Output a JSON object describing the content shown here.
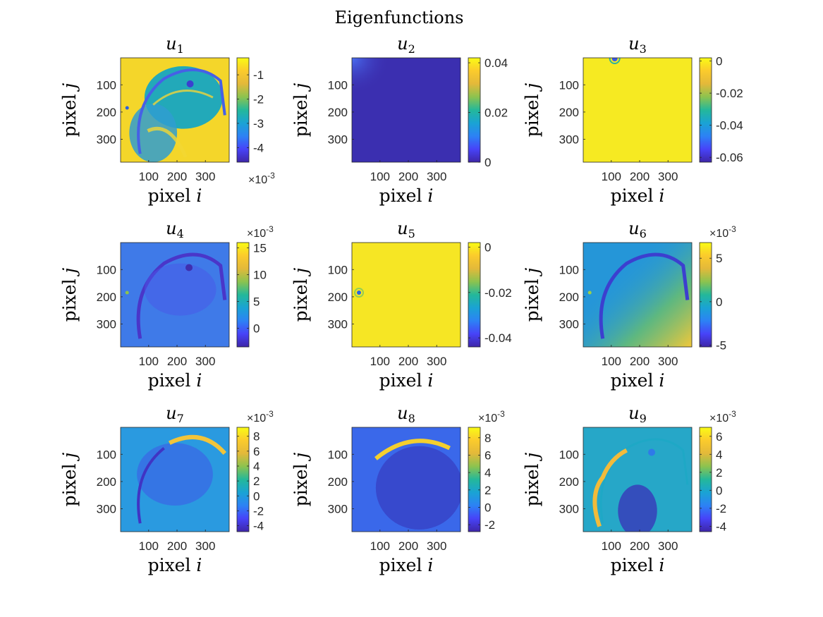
{
  "figure": {
    "title": "Eigenfunctions",
    "colormap": [
      "#3e26a8",
      "#4743f8",
      "#2c82f5",
      "#1aa3d4",
      "#24b89a",
      "#8cc34f",
      "#e3b93a",
      "#fbcb2c",
      "#f9fb15"
    ]
  },
  "chart_data": [
    {
      "type": "heatmap",
      "title_base": "u",
      "title_sub": "1",
      "xlabel_prefix": "pixel ",
      "xlabel_var": "i",
      "ylabel_prefix": "pixel ",
      "ylabel_var": "j",
      "xticks": [
        "100",
        "200",
        "300"
      ],
      "yticks": [
        "100",
        "200",
        "300"
      ],
      "xlim": [
        1,
        384
      ],
      "ylim": [
        1,
        384
      ],
      "colorbar": {
        "ticks": [
          "-1",
          "-2",
          "-3",
          "-4"
        ],
        "tick_values": [
          -1,
          -2,
          -3,
          -4
        ],
        "range": [
          -4.6,
          -0.3
        ],
        "exponent_base": "×10",
        "exponent_power": "-3",
        "exponent_position": "bottom"
      },
      "image": "brain-anatomy",
      "base_color": "#f4d62a"
    },
    {
      "type": "heatmap",
      "title_base": "u",
      "title_sub": "2",
      "xlabel_prefix": "pixel ",
      "xlabel_var": "i",
      "ylabel_prefix": "pixel ",
      "ylabel_var": "j",
      "xticks": [
        "100",
        "200",
        "300"
      ],
      "yticks": [
        "100",
        "200",
        "300"
      ],
      "xlim": [
        1,
        384
      ],
      "ylim": [
        1,
        384
      ],
      "colorbar": {
        "ticks": [
          "0.04",
          "0.02",
          "0"
        ],
        "tick_values": [
          0.04,
          0.02,
          0
        ],
        "range": [
          0,
          0.042
        ],
        "exponent_base": "",
        "exponent_power": "",
        "exponent_position": "none"
      },
      "image": "corner-peak",
      "base_color": "#3b2fb0"
    },
    {
      "type": "heatmap",
      "title_base": "u",
      "title_sub": "3",
      "xlabel_prefix": "pixel ",
      "xlabel_var": "i",
      "ylabel_prefix": "pixel ",
      "ylabel_var": "j",
      "xticks": [
        "100",
        "200",
        "300"
      ],
      "yticks": [
        "100",
        "200",
        "300"
      ],
      "xlim": [
        1,
        384
      ],
      "ylim": [
        1,
        384
      ],
      "colorbar": {
        "ticks": [
          "0",
          "-0.02",
          "-0.04",
          "-0.06"
        ],
        "tick_values": [
          0,
          -0.02,
          -0.04,
          -0.06
        ],
        "range": [
          -0.063,
          0.002
        ],
        "exponent_base": "",
        "exponent_power": "",
        "exponent_position": "none"
      },
      "image": "top-spot",
      "base_color": "#f6ea22"
    },
    {
      "type": "heatmap",
      "title_base": "u",
      "title_sub": "4",
      "xlabel_prefix": "pixel ",
      "xlabel_var": "i",
      "ylabel_prefix": "pixel ",
      "ylabel_var": "j",
      "xticks": [
        "100",
        "200",
        "300"
      ],
      "yticks": [
        "100",
        "200",
        "300"
      ],
      "xlim": [
        1,
        384
      ],
      "ylim": [
        1,
        384
      ],
      "colorbar": {
        "ticks": [
          "15",
          "10",
          "5",
          "0"
        ],
        "tick_values": [
          15,
          10,
          5,
          0
        ],
        "range": [
          -3.5,
          16
        ],
        "exponent_base": "×10",
        "exponent_power": "-3",
        "exponent_position": "top"
      },
      "image": "brain-smooth",
      "base_color": "#3f7ae8"
    },
    {
      "type": "heatmap",
      "title_base": "u",
      "title_sub": "5",
      "xlabel_prefix": "pixel ",
      "xlabel_var": "i",
      "ylabel_prefix": "pixel ",
      "ylabel_var": "j",
      "xticks": [
        "100",
        "200",
        "300"
      ],
      "yticks": [
        "100",
        "200",
        "300"
      ],
      "xlim": [
        1,
        384
      ],
      "ylim": [
        1,
        384
      ],
      "colorbar": {
        "ticks": [
          "0",
          "-0.02",
          "-0.04"
        ],
        "tick_values": [
          0,
          -0.02,
          -0.04
        ],
        "range": [
          -0.044,
          0.002
        ],
        "exponent_base": "",
        "exponent_power": "",
        "exponent_position": "none"
      },
      "image": "left-spot",
      "base_color": "#f6e624"
    },
    {
      "type": "heatmap",
      "title_base": "u",
      "title_sub": "6",
      "xlabel_prefix": "pixel ",
      "xlabel_var": "i",
      "ylabel_prefix": "pixel ",
      "ylabel_var": "j",
      "xticks": [
        "100",
        "200",
        "300"
      ],
      "yticks": [
        "100",
        "200",
        "300"
      ],
      "xlim": [
        1,
        384
      ],
      "ylim": [
        1,
        384
      ],
      "colorbar": {
        "ticks": [
          "5",
          "0",
          "-5"
        ],
        "tick_values": [
          5,
          0,
          -5
        ],
        "range": [
          -5.2,
          6.8
        ],
        "exponent_base": "×10",
        "exponent_power": "-3",
        "exponent_position": "top"
      },
      "image": "brain-gradient",
      "base_color": "#2596d8"
    },
    {
      "type": "heatmap",
      "title_base": "u",
      "title_sub": "7",
      "xlabel_prefix": "pixel ",
      "xlabel_var": "i",
      "ylabel_prefix": "pixel ",
      "ylabel_var": "j",
      "xticks": [
        "100",
        "200",
        "300"
      ],
      "yticks": [
        "100",
        "200",
        "300"
      ],
      "xlim": [
        1,
        384
      ],
      "ylim": [
        1,
        384
      ],
      "colorbar": {
        "ticks": [
          "8",
          "6",
          "4",
          "2",
          "0",
          "-2",
          "-4"
        ],
        "tick_values": [
          8,
          6,
          4,
          2,
          0,
          -2,
          -4
        ],
        "range": [
          -4.8,
          9.2
        ],
        "exponent_base": "×10",
        "exponent_power": "-3",
        "exponent_position": "top"
      },
      "image": "brain-skull",
      "base_color": "#2a9ae0"
    },
    {
      "type": "heatmap",
      "title_base": "u",
      "title_sub": "8",
      "xlabel_prefix": "pixel ",
      "xlabel_var": "i",
      "ylabel_prefix": "pixel ",
      "ylabel_var": "j",
      "xticks": [
        "100",
        "200",
        "300"
      ],
      "yticks": [
        "100",
        "200",
        "300"
      ],
      "xlim": [
        1,
        384
      ],
      "ylim": [
        1,
        384
      ],
      "colorbar": {
        "ticks": [
          "8",
          "6",
          "4",
          "2",
          "0",
          "-2"
        ],
        "tick_values": [
          8,
          6,
          4,
          2,
          0,
          -2
        ],
        "range": [
          -2.8,
          9.2
        ],
        "exponent_base": "×10",
        "exponent_power": "-3",
        "exponent_position": "top"
      },
      "image": "brain-dark",
      "base_color": "#3a68ea"
    },
    {
      "type": "heatmap",
      "title_base": "u",
      "title_sub": "9",
      "xlabel_prefix": "pixel ",
      "xlabel_var": "i",
      "ylabel_prefix": "pixel ",
      "ylabel_var": "j",
      "xticks": [
        "100",
        "200",
        "300"
      ],
      "yticks": [
        "100",
        "200",
        "300"
      ],
      "xlim": [
        1,
        384
      ],
      "ylim": [
        1,
        384
      ],
      "colorbar": {
        "ticks": [
          "6",
          "4",
          "2",
          "0",
          "-2",
          "-4"
        ],
        "tick_values": [
          6,
          4,
          2,
          0,
          -2,
          -4
        ],
        "range": [
          -4.6,
          7.0
        ],
        "exponent_base": "×10",
        "exponent_power": "-3",
        "exponent_position": "top"
      },
      "image": "brain-face",
      "base_color": "#26a7c8"
    }
  ]
}
